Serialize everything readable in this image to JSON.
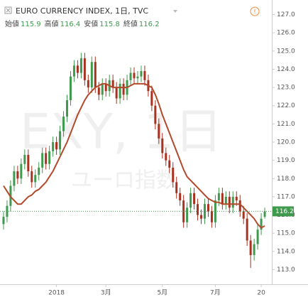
{
  "chart_data": {
    "type": "candlestick",
    "title": "EURO CURRENCY INDEX, 1日, TVC",
    "ohlc_labels": [
      "始値",
      "高値",
      "安値",
      "終値"
    ],
    "watermark": "EXY, 1日",
    "watermark_subtitle": "ユーロ指数",
    "up_color": "#3f9a4e",
    "down_color": "#a83220",
    "open": [
      115.5,
      115.9,
      116.5,
      117.6,
      118.4,
      118.0,
      118.8,
      119.3,
      118.4,
      117.8,
      118.2,
      118.6,
      119.4,
      118.8,
      119.5,
      120.0,
      119.6,
      120.6,
      121.4,
      122.3,
      123.6,
      124.2,
      123.8,
      124.6,
      123.4,
      123.0,
      124.4,
      123.0,
      122.6,
      123.2,
      122.8,
      123.4,
      123.0,
      122.4,
      123.2,
      122.6,
      123.4,
      123.8,
      123.5,
      123.6,
      123.9,
      123.4,
      122.8,
      122.0,
      121.0,
      120.2,
      119.4,
      119.0,
      118.6,
      117.8,
      117.2,
      116.8,
      115.6,
      116.4,
      117.2,
      116.6,
      116.0,
      115.8,
      116.6,
      116.2,
      115.6,
      116.8,
      117.2,
      116.6,
      117.0,
      116.4,
      117.0,
      116.8,
      116.2,
      115.8,
      114.6,
      113.8,
      114.4,
      115.2,
      115.9
    ],
    "high": [
      116.2,
      116.8,
      117.9,
      118.7,
      118.7,
      119.1,
      119.6,
      119.6,
      118.7,
      118.5,
      118.9,
      119.7,
      119.7,
      119.8,
      120.3,
      120.3,
      120.9,
      121.7,
      122.6,
      123.9,
      124.5,
      124.5,
      124.9,
      124.9,
      123.7,
      124.7,
      124.7,
      123.3,
      123.5,
      123.5,
      123.7,
      123.7,
      123.3,
      123.5,
      123.5,
      123.7,
      124.1,
      124.1,
      123.9,
      124.2,
      124.2,
      123.7,
      123.1,
      122.3,
      121.3,
      120.5,
      119.7,
      119.3,
      118.9,
      118.1,
      117.5,
      117.1,
      116.7,
      117.5,
      117.5,
      116.9,
      116.3,
      116.9,
      116.9,
      116.5,
      117.1,
      117.5,
      117.5,
      117.3,
      117.3,
      117.3,
      117.3,
      117.1,
      116.5,
      116.1,
      114.9,
      114.7,
      115.5,
      116.1,
      116.4
    ],
    "low": [
      115.2,
      115.6,
      116.2,
      117.3,
      117.7,
      117.7,
      118.5,
      118.1,
      117.5,
      117.5,
      117.9,
      118.3,
      118.5,
      118.5,
      119.2,
      119.3,
      119.3,
      120.3,
      121.1,
      122.0,
      123.3,
      123.5,
      123.5,
      123.1,
      122.7,
      122.7,
      122.7,
      122.3,
      122.3,
      122.5,
      122.5,
      122.7,
      122.1,
      122.1,
      122.3,
      122.3,
      123.1,
      123.2,
      123.2,
      123.3,
      123.1,
      122.5,
      121.7,
      120.7,
      119.9,
      119.1,
      118.7,
      118.3,
      117.5,
      116.9,
      116.5,
      115.3,
      115.3,
      116.1,
      116.3,
      115.7,
      115.5,
      115.5,
      115.9,
      115.3,
      115.3,
      116.5,
      116.3,
      116.3,
      116.1,
      116.1,
      116.5,
      115.9,
      115.5,
      114.3,
      113.1,
      113.5,
      114.1,
      114.9,
      115.8
    ],
    "close": [
      115.9,
      116.5,
      117.6,
      118.4,
      118.0,
      118.8,
      119.3,
      118.4,
      117.8,
      118.2,
      118.6,
      119.4,
      118.8,
      119.5,
      120.0,
      119.6,
      120.6,
      121.4,
      122.3,
      123.6,
      124.2,
      123.8,
      124.6,
      123.4,
      123.0,
      124.4,
      123.0,
      122.6,
      123.2,
      122.8,
      123.4,
      123.0,
      122.4,
      123.2,
      122.6,
      123.4,
      123.8,
      123.5,
      123.6,
      123.9,
      123.4,
      122.8,
      122.0,
      121.0,
      120.2,
      119.4,
      119.0,
      118.6,
      117.8,
      117.2,
      116.8,
      115.6,
      116.4,
      117.2,
      116.6,
      116.0,
      115.8,
      116.6,
      116.2,
      115.6,
      116.8,
      117.2,
      116.6,
      117.0,
      116.4,
      117.0,
      116.8,
      116.2,
      115.8,
      114.6,
      113.8,
      114.4,
      115.2,
      115.8,
      116.2
    ],
    "ma": {
      "color": "#b3492b",
      "values": [
        117.6,
        117.3,
        117.0,
        116.8,
        116.6,
        116.6,
        116.8,
        117.0,
        117.1,
        117.3,
        117.4,
        117.6,
        117.8,
        118.1,
        118.4,
        118.8,
        119.2,
        119.6,
        120.0,
        120.5,
        121.0,
        121.5,
        121.9,
        122.3,
        122.6,
        122.8,
        123.0,
        123.1,
        123.2,
        123.2,
        123.1,
        123.0,
        123.0,
        123.0,
        123.0,
        123.0,
        123.1,
        123.2,
        123.2,
        123.2,
        123.2,
        123.1,
        123.0,
        122.6,
        122.1,
        121.5,
        121.0,
        120.5,
        120.0,
        119.5,
        119.0,
        118.5,
        118.1,
        117.9,
        117.7,
        117.5,
        117.3,
        117.1,
        116.9,
        116.8,
        116.7,
        116.7,
        116.6,
        116.6,
        116.6,
        116.6,
        116.6,
        116.6,
        116.4,
        116.2,
        116.0,
        115.8,
        115.5,
        115.3,
        115.4
      ]
    },
    "xlim": [
      -1,
      76
    ],
    "xticks": [
      {
        "value": 15,
        "label": "2018"
      },
      {
        "value": 29,
        "label": "3月"
      },
      {
        "value": 45,
        "label": "5月"
      },
      {
        "value": 60,
        "label": "7月"
      },
      {
        "value": 73,
        "label": "20"
      }
    ],
    "ylim": [
      112.2,
      127.8
    ],
    "yticks": [
      {
        "value": 113,
        "label": "113.0"
      },
      {
        "value": 114,
        "label": "114.0"
      },
      {
        "value": 115,
        "label": "115.0"
      },
      {
        "value": 116,
        "label": "116.0"
      },
      {
        "value": 117,
        "label": "117.0"
      },
      {
        "value": 118,
        "label": "118.0"
      },
      {
        "value": 119,
        "label": "119.0"
      },
      {
        "value": 120,
        "label": "120.0"
      },
      {
        "value": 121,
        "label": "121.0"
      },
      {
        "value": 122,
        "label": "122.0"
      },
      {
        "value": 123,
        "label": "123.0"
      },
      {
        "value": 124,
        "label": "124.0"
      },
      {
        "value": 125,
        "label": "125.0"
      },
      {
        "value": 126,
        "label": "126.0"
      },
      {
        "value": 127,
        "label": "127.0"
      }
    ]
  }
}
